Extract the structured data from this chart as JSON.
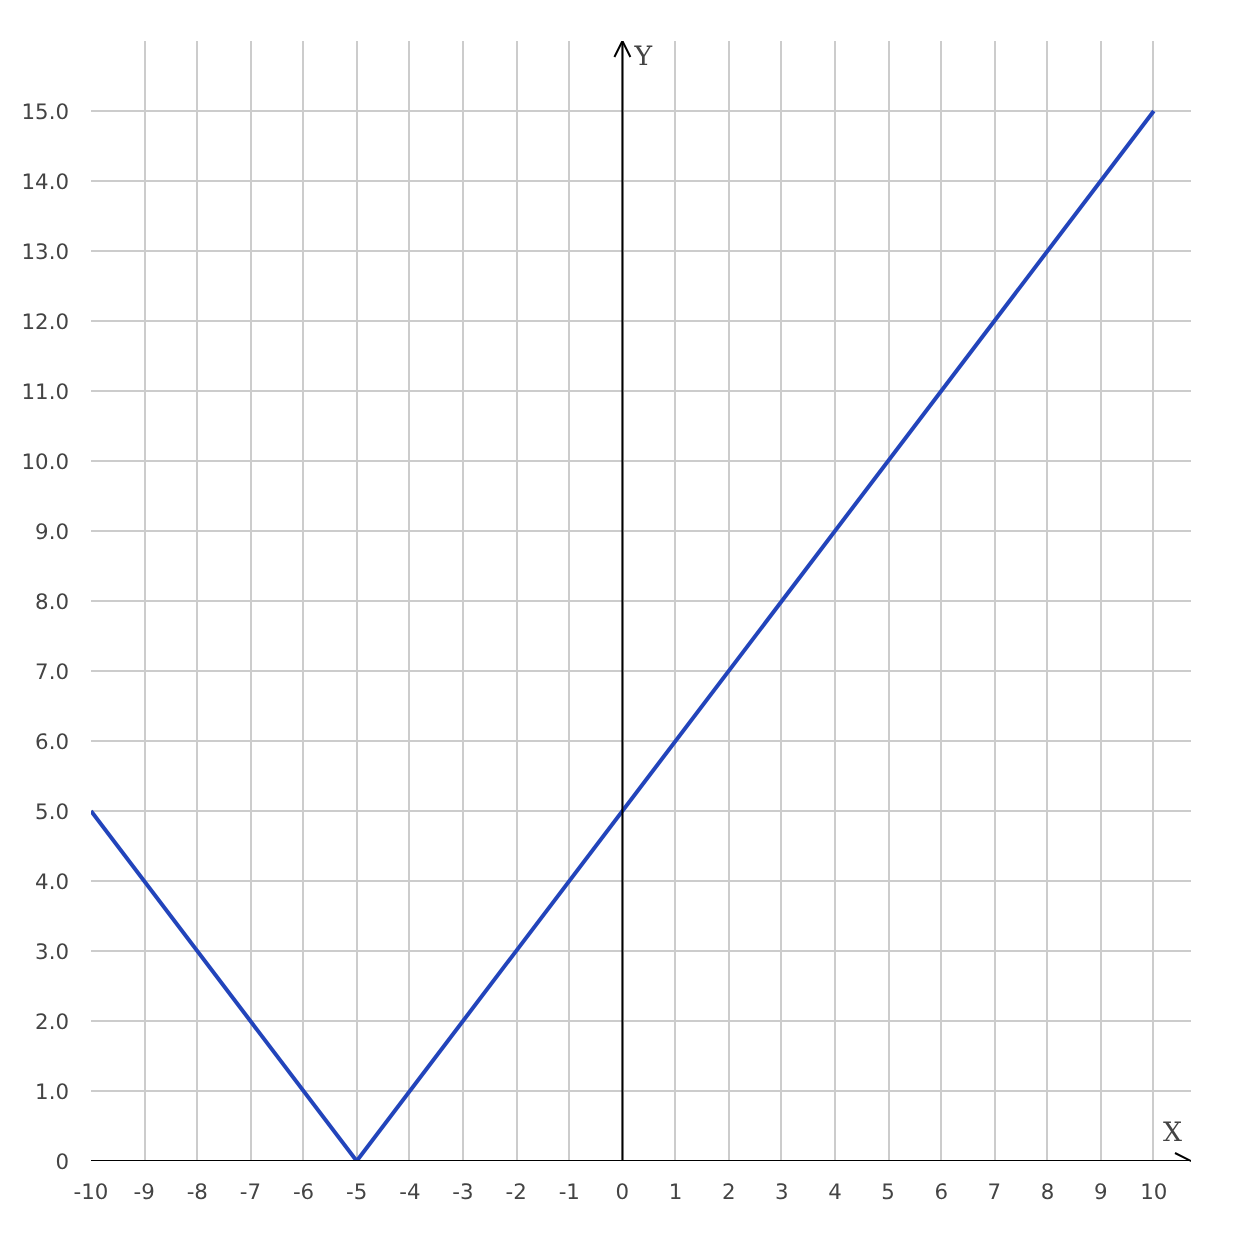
{
  "chart_data": {
    "type": "line",
    "xlabel": "X",
    "ylabel": "Y",
    "x": [
      -10,
      -5,
      10
    ],
    "series": [
      {
        "color": "#2244bb",
        "values": [
          5,
          0,
          15
        ]
      }
    ],
    "xlim": [
      -10,
      10.7
    ],
    "ylim": [
      0,
      16
    ],
    "xticks": [
      -10,
      -9,
      -8,
      -7,
      -6,
      -5,
      -4,
      -3,
      -2,
      -1,
      0,
      1,
      2,
      3,
      4,
      5,
      6,
      7,
      8,
      9,
      10
    ],
    "yticks": [
      0,
      {
        "value": 1,
        "label": "1.0"
      },
      {
        "value": 2,
        "label": "2.0"
      },
      {
        "value": 3,
        "label": "3.0"
      },
      {
        "value": 4,
        "label": "4.0"
      },
      {
        "value": 5,
        "label": "5.0"
      },
      {
        "value": 6,
        "label": "6.0"
      },
      {
        "value": 7,
        "label": "7.0"
      },
      {
        "value": 8,
        "label": "8.0"
      },
      {
        "value": 9,
        "label": "9.0"
      },
      {
        "value": 10,
        "label": "10.0"
      },
      {
        "value": 11,
        "label": "11.0"
      },
      {
        "value": 12,
        "label": "12.0"
      },
      {
        "value": 13,
        "label": "13.0"
      },
      {
        "value": 14,
        "label": "14.0"
      },
      {
        "value": 15,
        "label": "15.0"
      }
    ],
    "grid": true,
    "marker": "none",
    "line_style": "solid"
  }
}
